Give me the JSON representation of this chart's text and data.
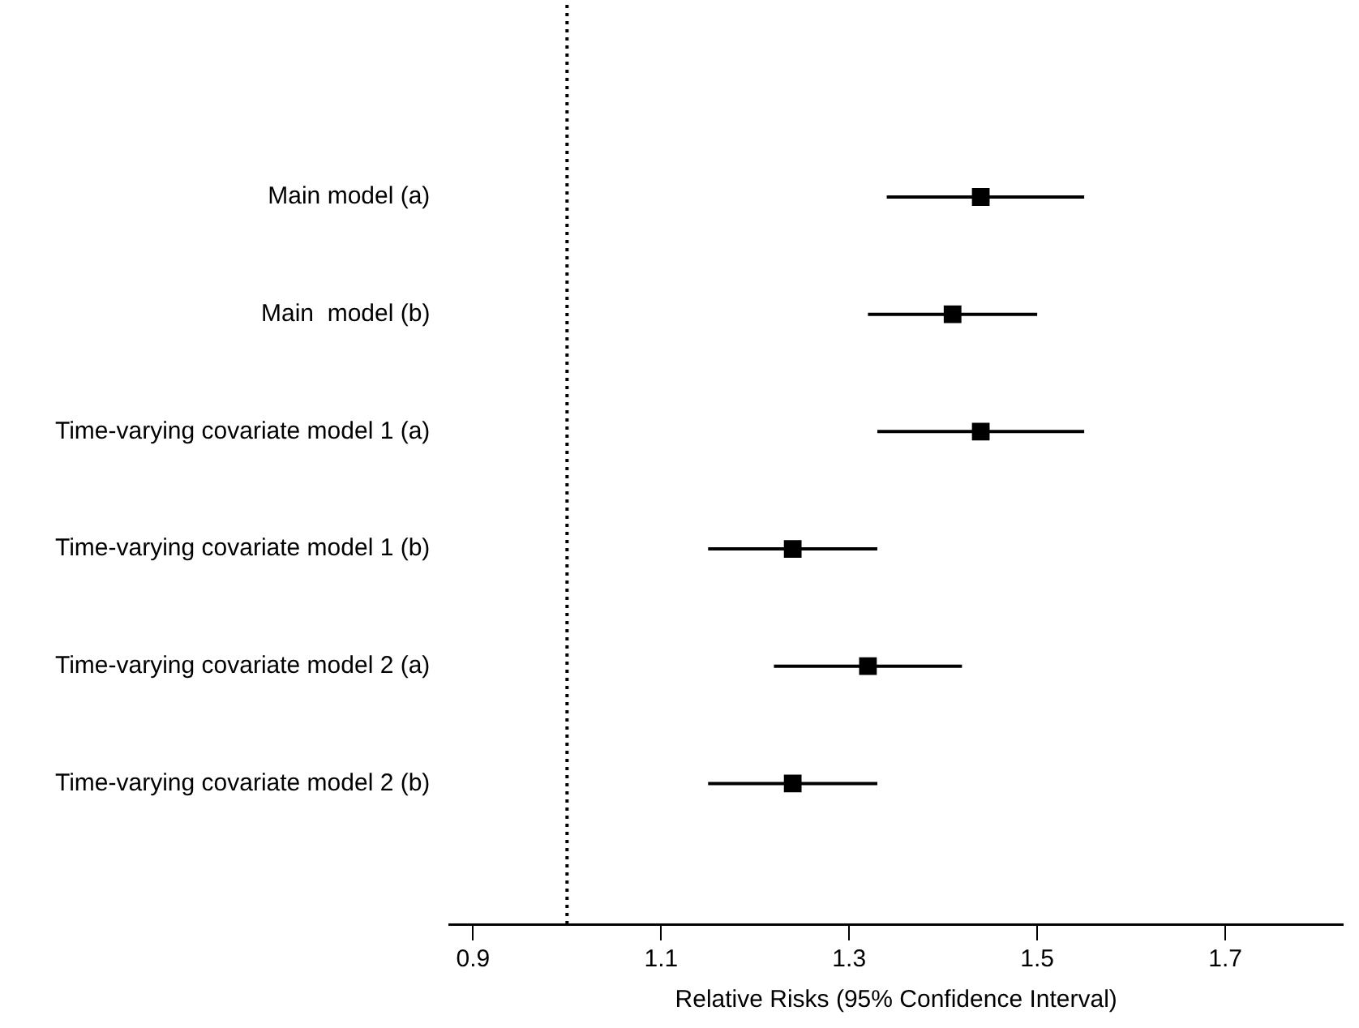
{
  "chart_data": {
    "type": "scatter",
    "orientation": "horizontal",
    "xlabel": "Relative Risks (95% Confidence Interval)",
    "categories": [
      "Main model (a)",
      "Main  model (b)",
      "Time-varying covariate model 1 (a)",
      "Time-varying covariate model 1 (b)",
      "Time-varying covariate model 2 (a)",
      "Time-varying covariate model 2 (b)"
    ],
    "series": [
      {
        "color": "#000000",
        "values": [
          1.44,
          1.41,
          1.44,
          1.24,
          1.32,
          1.24
        ],
        "errors": [
          [
            1.34,
            1.55
          ],
          [
            1.32,
            1.5
          ],
          [
            1.33,
            1.55
          ],
          [
            1.15,
            1.33
          ],
          [
            1.22,
            1.42
          ],
          [
            1.15,
            1.33
          ]
        ]
      }
    ],
    "xlim": [
      0.875,
      1.825
    ],
    "xticks": [
      0.9,
      1.1,
      1.3,
      1.5,
      1.7
    ],
    "ref_lines": [
      {
        "axis": "x",
        "value": 1.0,
        "color": "#000000",
        "line_style": "dotted"
      }
    ],
    "marker": "square",
    "grid": false,
    "legend": false
  }
}
